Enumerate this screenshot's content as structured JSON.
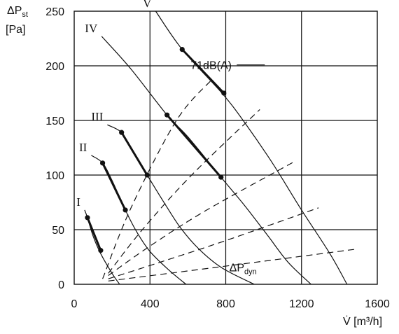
{
  "chart_data": {
    "type": "line",
    "ylabel_main": "ΔP",
    "ylabel_sub": "st",
    "ylabel_unit": "[Pa]",
    "xlabel": "V̇ [m³/h]",
    "xlim": [
      0,
      1600
    ],
    "ylim": [
      0,
      250
    ],
    "x_ticks": [
      "0",
      "400",
      "800",
      "1200",
      "1600"
    ],
    "y_ticks": [
      "0",
      "50",
      "100",
      "150",
      "200",
      "250"
    ],
    "x_tick_values": [
      0,
      400,
      800,
      1200,
      1600
    ],
    "y_tick_values": [
      0,
      50,
      100,
      150,
      200,
      250
    ],
    "grid": true,
    "series": [
      {
        "name": "I",
        "points": [
          [
            55,
            68
          ],
          [
            70,
            61
          ],
          [
            100,
            44
          ],
          [
            140,
            28
          ],
          [
            200,
            10
          ],
          [
            240,
            0
          ]
        ],
        "op_segment": [
          [
            70,
            61
          ],
          [
            140,
            31
          ]
        ]
      },
      {
        "name": "II",
        "points": [
          [
            90,
            118
          ],
          [
            150,
            111
          ],
          [
            200,
            95
          ],
          [
            270,
            68
          ],
          [
            330,
            48
          ],
          [
            400,
            30
          ],
          [
            500,
            13
          ],
          [
            590,
            0
          ]
        ],
        "op_segment": [
          [
            150,
            111
          ],
          [
            270,
            68
          ]
        ]
      },
      {
        "name": "III",
        "points": [
          [
            175,
            146
          ],
          [
            250,
            139
          ],
          [
            300,
            124
          ],
          [
            385,
            100
          ],
          [
            470,
            76
          ],
          [
            560,
            52
          ],
          [
            660,
            32
          ],
          [
            780,
            15
          ],
          [
            950,
            0
          ]
        ],
        "op_segment": [
          [
            250,
            139
          ],
          [
            385,
            100
          ]
        ]
      },
      {
        "name": "IV",
        "points": [
          [
            145,
            227
          ],
          [
            300,
            197
          ],
          [
            490,
            155
          ],
          [
            600,
            135
          ],
          [
            775,
            98
          ],
          [
            900,
            72
          ],
          [
            1020,
            45
          ],
          [
            1130,
            20
          ],
          [
            1250,
            0
          ]
        ],
        "op_segment": [
          [
            490,
            155
          ],
          [
            775,
            98
          ]
        ]
      },
      {
        "name": "V",
        "points": [
          [
            430,
            250
          ],
          [
            570,
            215
          ],
          [
            780,
            175
          ],
          [
            900,
            148
          ],
          [
            1050,
            110
          ],
          [
            1200,
            68
          ],
          [
            1350,
            28
          ],
          [
            1440,
            0
          ]
        ],
        "op_segment": [
          [
            570,
            215
          ],
          [
            790,
            175
          ]
        ]
      }
    ],
    "system_curves": [
      {
        "points": [
          [
            150,
            5
          ],
          [
            300,
            70
          ],
          [
            540,
            150
          ],
          [
            730,
            188
          ]
        ]
      },
      {
        "points": [
          [
            180,
            10
          ],
          [
            360,
            50
          ],
          [
            620,
            100
          ],
          [
            980,
            160
          ]
        ]
      },
      {
        "points": [
          [
            180,
            8
          ],
          [
            400,
            35
          ],
          [
            700,
            68
          ],
          [
            1170,
            113
          ]
        ]
      },
      {
        "points": [
          [
            180,
            5
          ],
          [
            450,
            20
          ],
          [
            800,
            40
          ],
          [
            1290,
            70
          ]
        ]
      },
      {
        "points": [
          [
            180,
            3
          ],
          [
            500,
            10
          ],
          [
            950,
            20
          ],
          [
            1480,
            32
          ]
        ]
      }
    ],
    "annotations": [
      {
        "text": "71dB(A)",
        "x": 740,
        "y": 197
      },
      {
        "text": "ΔP",
        "sub": "dyn",
        "x": 930,
        "y": 12
      }
    ]
  }
}
